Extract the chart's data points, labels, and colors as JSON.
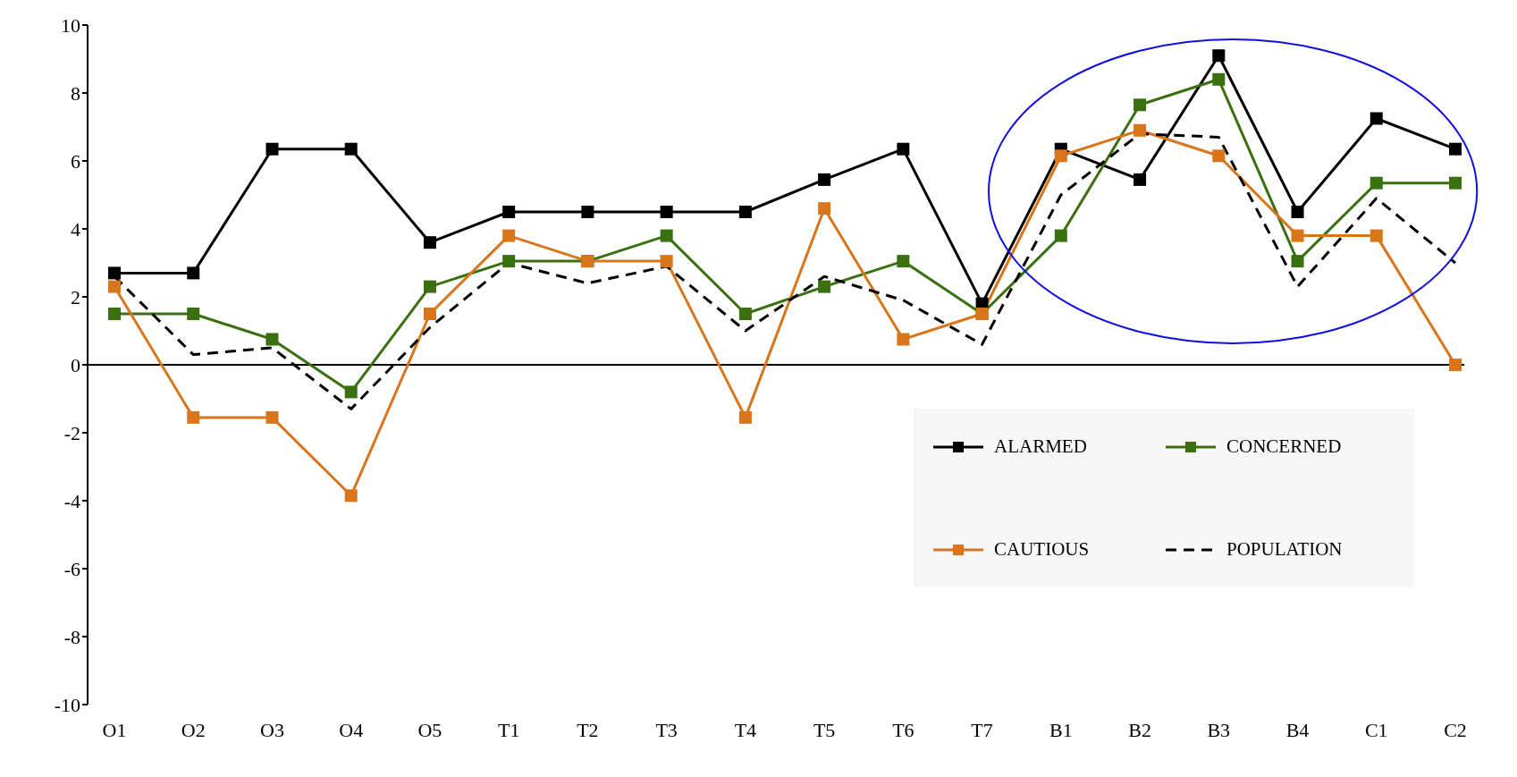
{
  "chart_data": {
    "type": "line",
    "categories": [
      "O1",
      "O2",
      "O3",
      "O4",
      "O5",
      "T1",
      "T2",
      "T3",
      "T4",
      "T5",
      "T6",
      "T7",
      "B1",
      "B2",
      "B3",
      "B4",
      "C1",
      "C2"
    ],
    "series": [
      {
        "name": "ALARMED",
        "color": "#000000",
        "marker": "square",
        "line_style": "solid",
        "values": [
          2.7,
          2.7,
          6.35,
          6.35,
          3.6,
          4.5,
          4.5,
          4.5,
          4.5,
          5.45,
          6.35,
          1.8,
          6.35,
          5.45,
          9.1,
          4.5,
          7.25,
          6.35
        ]
      },
      {
        "name": "CONCERNED",
        "color": "#3a7010",
        "marker": "square",
        "line_style": "solid",
        "values": [
          1.5,
          1.5,
          0.75,
          -0.8,
          2.3,
          3.05,
          3.05,
          3.8,
          1.5,
          2.3,
          3.05,
          1.5,
          3.8,
          7.65,
          8.4,
          3.05,
          5.35,
          5.35
        ]
      },
      {
        "name": "CAUTIOUS",
        "color": "#d9761c",
        "marker": "square",
        "line_style": "solid",
        "values": [
          2.3,
          -1.55,
          -1.55,
          -3.85,
          1.5,
          3.8,
          3.05,
          3.05,
          -1.55,
          4.6,
          0.75,
          1.5,
          6.15,
          6.9,
          6.15,
          3.8,
          3.8,
          0
        ]
      },
      {
        "name": "POPULATION",
        "color": "#000000",
        "marker": "none",
        "line_style": "dashed",
        "values": [
          2.6,
          0.3,
          0.5,
          -1.3,
          1.1,
          3.0,
          2.4,
          2.9,
          1.0,
          2.6,
          1.9,
          0.6,
          5.0,
          6.8,
          6.7,
          2.3,
          4.9,
          3.0
        ]
      }
    ],
    "ylim": [
      -10,
      10
    ],
    "yticks": [
      -10,
      -8,
      -6,
      -4,
      -2,
      0,
      2,
      4,
      6,
      8,
      10
    ],
    "ref_lines": [
      {
        "axis": "y",
        "value": 0,
        "color": "#000000"
      }
    ],
    "legend": "bottom right"
  }
}
